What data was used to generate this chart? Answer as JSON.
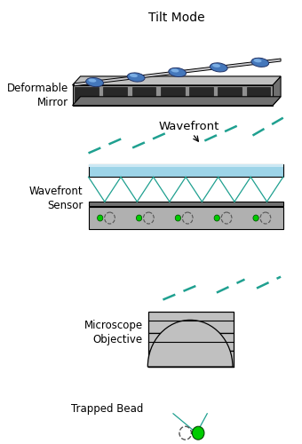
{
  "title": "Tilt Mode",
  "dm_label": "Deformable\nMirror",
  "wf_label": "Wavefront",
  "wfs_label": "Wavefront\nSensor",
  "mo_label": "Microscope\nObjective",
  "tb_label": "Trapped Bead",
  "bg_color": "#ffffff",
  "gray_light": "#c0c0c0",
  "gray_mid": "#a0a0a0",
  "gray_dark": "#707070",
  "gray_body": "#888888",
  "blue_glass": "#9dd4e8",
  "blue_glass_hi": "#cce8f4",
  "teal": "#1fa090",
  "green_bead": "#00cc00",
  "actuator_blue": "#4477bb",
  "actuator_hi": "#88bbee",
  "mirror_face": "#c8c8cc",
  "dm_front": "#909090",
  "dm_side": "#787878",
  "slot_dark": "#282828",
  "det_gray": "#b0b0b0"
}
